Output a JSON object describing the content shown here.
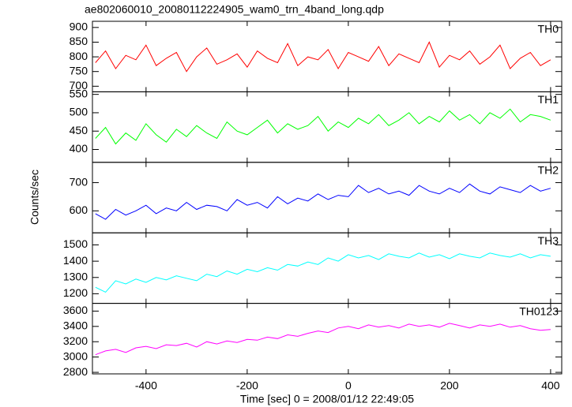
{
  "chart_data": {
    "type": "line",
    "title": "ae802060010_20080112224905_wam0_trn_4band_long.qdp",
    "xlabel": "Time [sec] 0 = 2008/01/12 22:49:05",
    "ylabel": "Counts/sec",
    "xlim": [
      -506,
      422
    ],
    "xticks": [
      -400,
      -200,
      0,
      200,
      400
    ],
    "x": [
      -500,
      -480,
      -460,
      -440,
      -420,
      -400,
      -380,
      -360,
      -340,
      -320,
      -300,
      -280,
      -260,
      -240,
      -220,
      -200,
      -180,
      -160,
      -140,
      -120,
      -100,
      -80,
      -60,
      -40,
      -20,
      0,
      20,
      40,
      60,
      80,
      100,
      120,
      140,
      160,
      180,
      200,
      220,
      240,
      260,
      280,
      300,
      320,
      340,
      360,
      380,
      400
    ],
    "series": [
      {
        "name": "TH0",
        "color": "#ff0000",
        "ylim": [
          681,
          921
        ],
        "yticks": [
          700,
          750,
          800,
          850,
          900
        ],
        "values": [
          780,
          820,
          760,
          805,
          790,
          840,
          770,
          795,
          815,
          750,
          800,
          830,
          775,
          790,
          810,
          765,
          820,
          795,
          780,
          845,
          770,
          800,
          790,
          825,
          760,
          815,
          800,
          785,
          835,
          770,
          810,
          795,
          780,
          850,
          765,
          805,
          790,
          820,
          775,
          800,
          840,
          760,
          795,
          815,
          770,
          790
        ]
      },
      {
        "name": "TH1",
        "color": "#00ff00",
        "ylim": [
          365,
          557
        ],
        "yticks": [
          400,
          450,
          500,
          550
        ],
        "values": [
          430,
          460,
          415,
          445,
          425,
          470,
          440,
          420,
          455,
          435,
          465,
          445,
          430,
          475,
          450,
          440,
          460,
          480,
          445,
          470,
          455,
          465,
          490,
          450,
          475,
          460,
          485,
          470,
          495,
          465,
          480,
          500,
          470,
          490,
          475,
          505,
          480,
          495,
          470,
          500,
          485,
          510,
          475,
          495,
          490,
          480
        ]
      },
      {
        "name": "TH2",
        "color": "#0000ff",
        "ylim": [
          522,
          772
        ],
        "yticks": [
          600,
          700
        ],
        "values": [
          590,
          570,
          605,
          585,
          600,
          620,
          590,
          610,
          600,
          630,
          605,
          620,
          615,
          600,
          640,
          620,
          630,
          610,
          650,
          625,
          645,
          635,
          660,
          640,
          655,
          650,
          690,
          665,
          680,
          660,
          670,
          655,
          690,
          670,
          660,
          680,
          665,
          695,
          670,
          660,
          685,
          675,
          665,
          690,
          670,
          680
        ]
      },
      {
        "name": "TH3",
        "color": "#00ffff",
        "ylim": [
          1141,
          1574
        ],
        "yticks": [
          1200,
          1300,
          1400,
          1500
        ],
        "values": [
          1240,
          1210,
          1280,
          1260,
          1290,
          1270,
          1300,
          1285,
          1310,
          1295,
          1280,
          1320,
          1305,
          1340,
          1320,
          1350,
          1335,
          1360,
          1345,
          1380,
          1370,
          1395,
          1380,
          1420,
          1400,
          1440,
          1420,
          1435,
          1410,
          1445,
          1430,
          1420,
          1450,
          1425,
          1440,
          1415,
          1445,
          1430,
          1420,
          1450,
          1435,
          1425,
          1445,
          1420,
          1440,
          1430
        ]
      },
      {
        "name": "TH0123",
        "color": "#ff00ff",
        "ylim": [
          2780,
          3701
        ],
        "yticks": [
          2800,
          3000,
          3200,
          3400,
          3600
        ],
        "values": [
          3030,
          3080,
          3100,
          3060,
          3120,
          3140,
          3110,
          3160,
          3150,
          3180,
          3130,
          3200,
          3170,
          3210,
          3190,
          3230,
          3220,
          3260,
          3240,
          3290,
          3270,
          3310,
          3340,
          3320,
          3380,
          3400,
          3370,
          3420,
          3390,
          3410,
          3380,
          3430,
          3400,
          3420,
          3390,
          3440,
          3410,
          3380,
          3420,
          3400,
          3430,
          3390,
          3410,
          3370,
          3350,
          3360
        ]
      }
    ]
  }
}
